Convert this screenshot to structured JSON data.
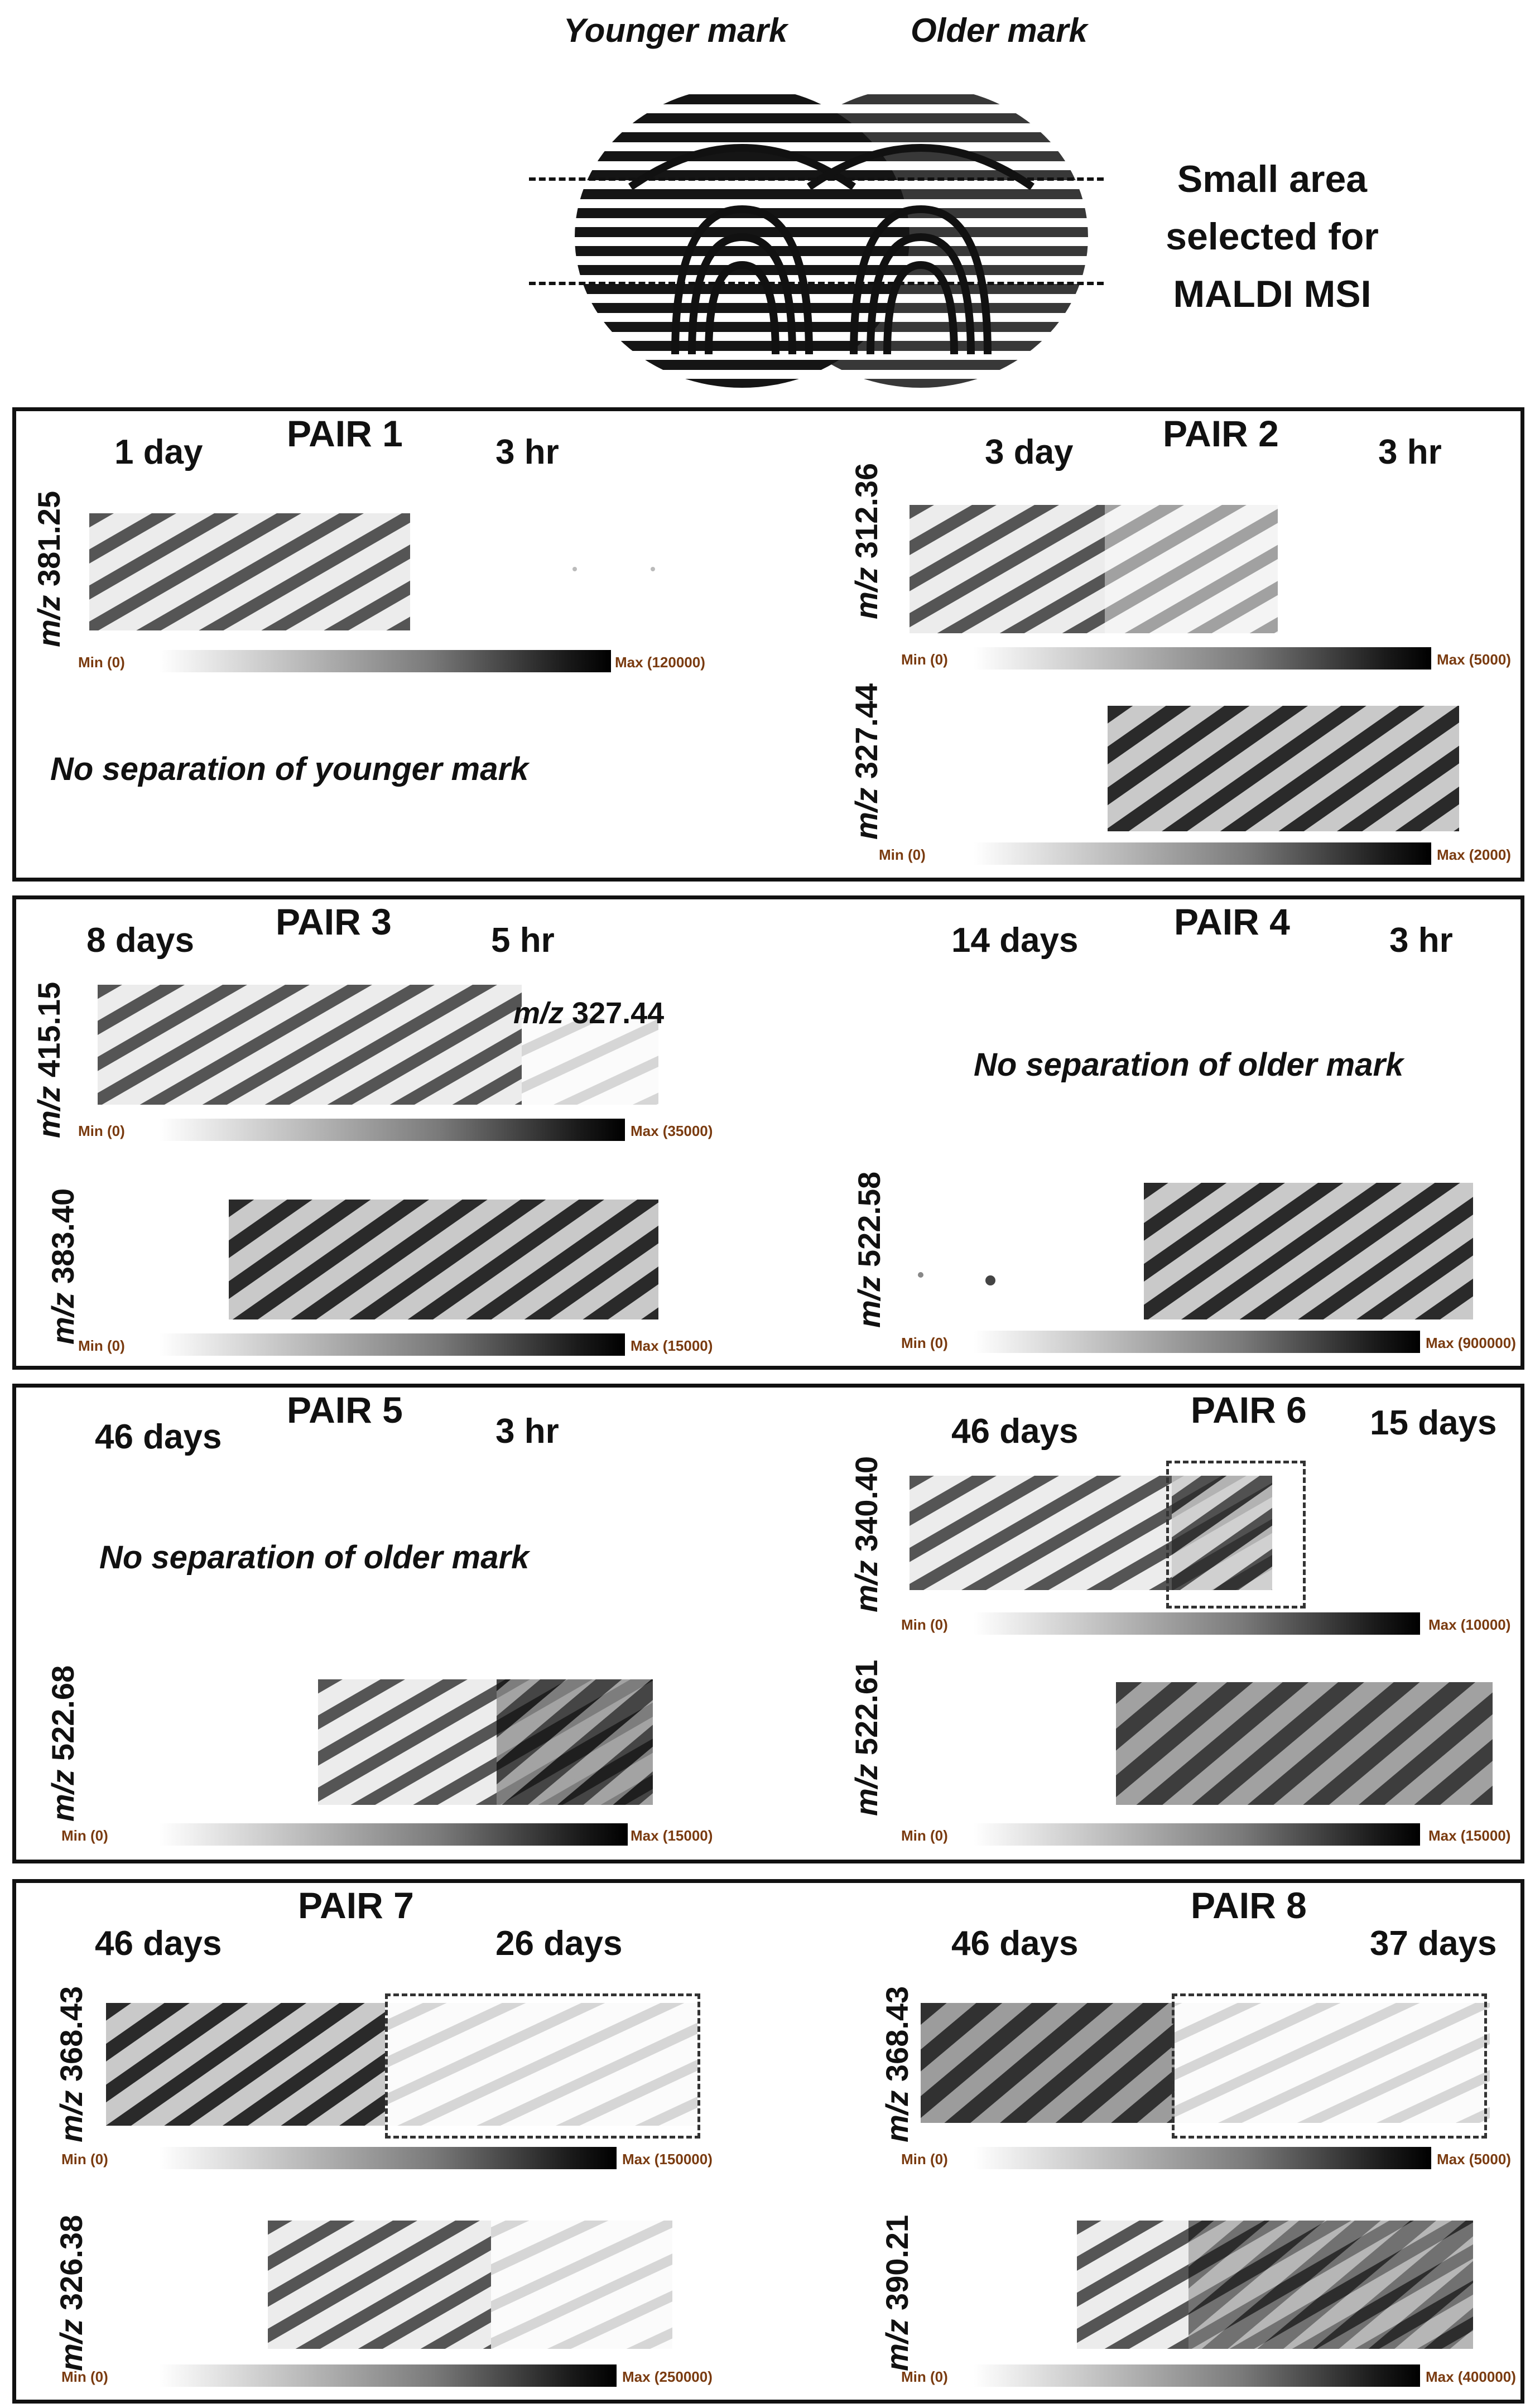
{
  "header": {
    "younger_label": "Younger mark",
    "older_label": "Older mark",
    "selection_line1": "Small area",
    "selection_line2": "selected for",
    "selection_line3": "MALDI MSI"
  },
  "scale": {
    "min": "Min (0)"
  },
  "pairs": [
    {
      "title": "PAIR 1",
      "left_age": "1 day",
      "right_age": "3 hr",
      "note": "No separation of younger mark",
      "images": [
        {
          "mz": "381.25",
          "max": "Max (120000)"
        }
      ]
    },
    {
      "title": "PAIR 2",
      "left_age": "3 day",
      "right_age": "3 hr",
      "images": [
        {
          "mz": "312.36",
          "max": "Max (5000)"
        },
        {
          "mz": "327.44",
          "max": "Max (2000)"
        }
      ]
    },
    {
      "title": "PAIR 3",
      "left_age": "8 days",
      "right_age": "5 hr",
      "inset_label": "327.44",
      "images": [
        {
          "mz": "415.15",
          "max": "Max (35000)"
        },
        {
          "mz": "383.40",
          "max": "Max (15000)"
        }
      ]
    },
    {
      "title": "PAIR 4",
      "left_age": "14 days",
      "right_age": "3 hr",
      "note": "No separation of older mark",
      "images": [
        {
          "mz": "522.58",
          "max": "Max (900000)"
        }
      ]
    },
    {
      "title": "PAIR 5",
      "left_age": "46 days",
      "right_age": "3 hr",
      "note": "No separation of older mark",
      "images": [
        {
          "mz": "522.68",
          "max": "Max (15000)"
        }
      ]
    },
    {
      "title": "PAIR 6",
      "left_age": "46 days",
      "right_age": "15 days",
      "images": [
        {
          "mz": "340.40",
          "max": "Max (10000)"
        },
        {
          "mz": "522.61",
          "max": "Max (15000)"
        }
      ]
    },
    {
      "title": "PAIR 7",
      "left_age": "46 days",
      "right_age": "26 days",
      "images": [
        {
          "mz": "368.43",
          "max": "Max (150000)"
        },
        {
          "mz": "326.38",
          "max": "Max (250000)"
        }
      ]
    },
    {
      "title": "PAIR 8",
      "left_age": "46 days",
      "right_age": "37 days",
      "images": [
        {
          "mz": "368.43",
          "max": "Max (5000)"
        },
        {
          "mz": "390.21",
          "max": "Max (400000)"
        }
      ]
    }
  ]
}
